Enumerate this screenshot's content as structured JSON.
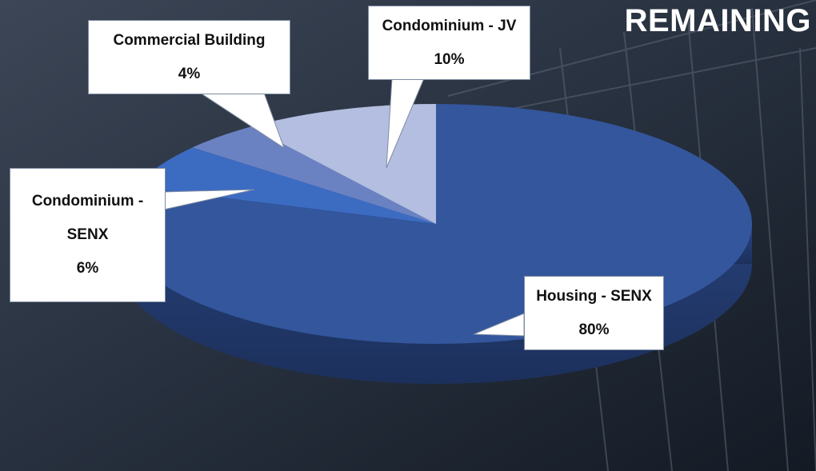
{
  "chart_data": {
    "type": "pie",
    "title": "REMAINING",
    "categories": [
      "Housing - SENX",
      "Condominium - SENX",
      "Commercial Building",
      "Condominium - JV"
    ],
    "values": [
      80,
      6,
      4,
      10
    ],
    "value_labels": [
      "80%",
      "6%",
      "4%",
      "10%"
    ],
    "colors": [
      "#33569c",
      "#3c6bc2",
      "#6a82c2",
      "#b3bee0"
    ]
  }
}
